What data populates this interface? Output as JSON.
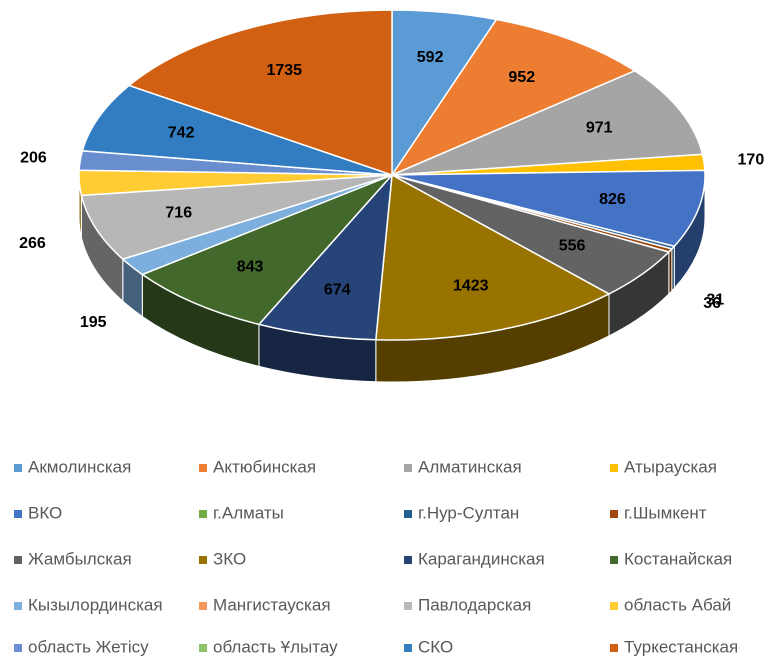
{
  "chart_data": {
    "type": "pie3d",
    "categories": [
      "Акмолинская",
      "Актюбинская",
      "Алматинская",
      "Атырауская",
      "ВКО",
      "г.Алматы",
      "г.Нур-Султан",
      "г.Шымкент",
      "Жамбылская",
      "ЗКО",
      "Карагандинская",
      "Костанайская",
      "Кызылординская",
      "Мангистауская",
      "Павлодарская",
      "область Абай",
      "область Жетісу",
      "область Ұлытау",
      "СКО",
      "Туркестанская"
    ],
    "values": [
      592,
      952,
      971,
      170,
      826,
      0,
      31,
      36,
      556,
      1423,
      674,
      843,
      195,
      0,
      716,
      266,
      206,
      0,
      742,
      1735
    ],
    "colors": [
      "#5B9BD5",
      "#ED7D31",
      "#A5A5A5",
      "#FFC000",
      "#4472C4",
      "#70AD47",
      "#255E91",
      "#9E480E",
      "#636363",
      "#997300",
      "#264478",
      "#43682B",
      "#7CAFDD",
      "#F1975A",
      "#B7B7B7",
      "#FFCD33",
      "#698ED0",
      "#8CC168",
      "#327DC2",
      "#D26012"
    ],
    "legend": "bottom"
  }
}
